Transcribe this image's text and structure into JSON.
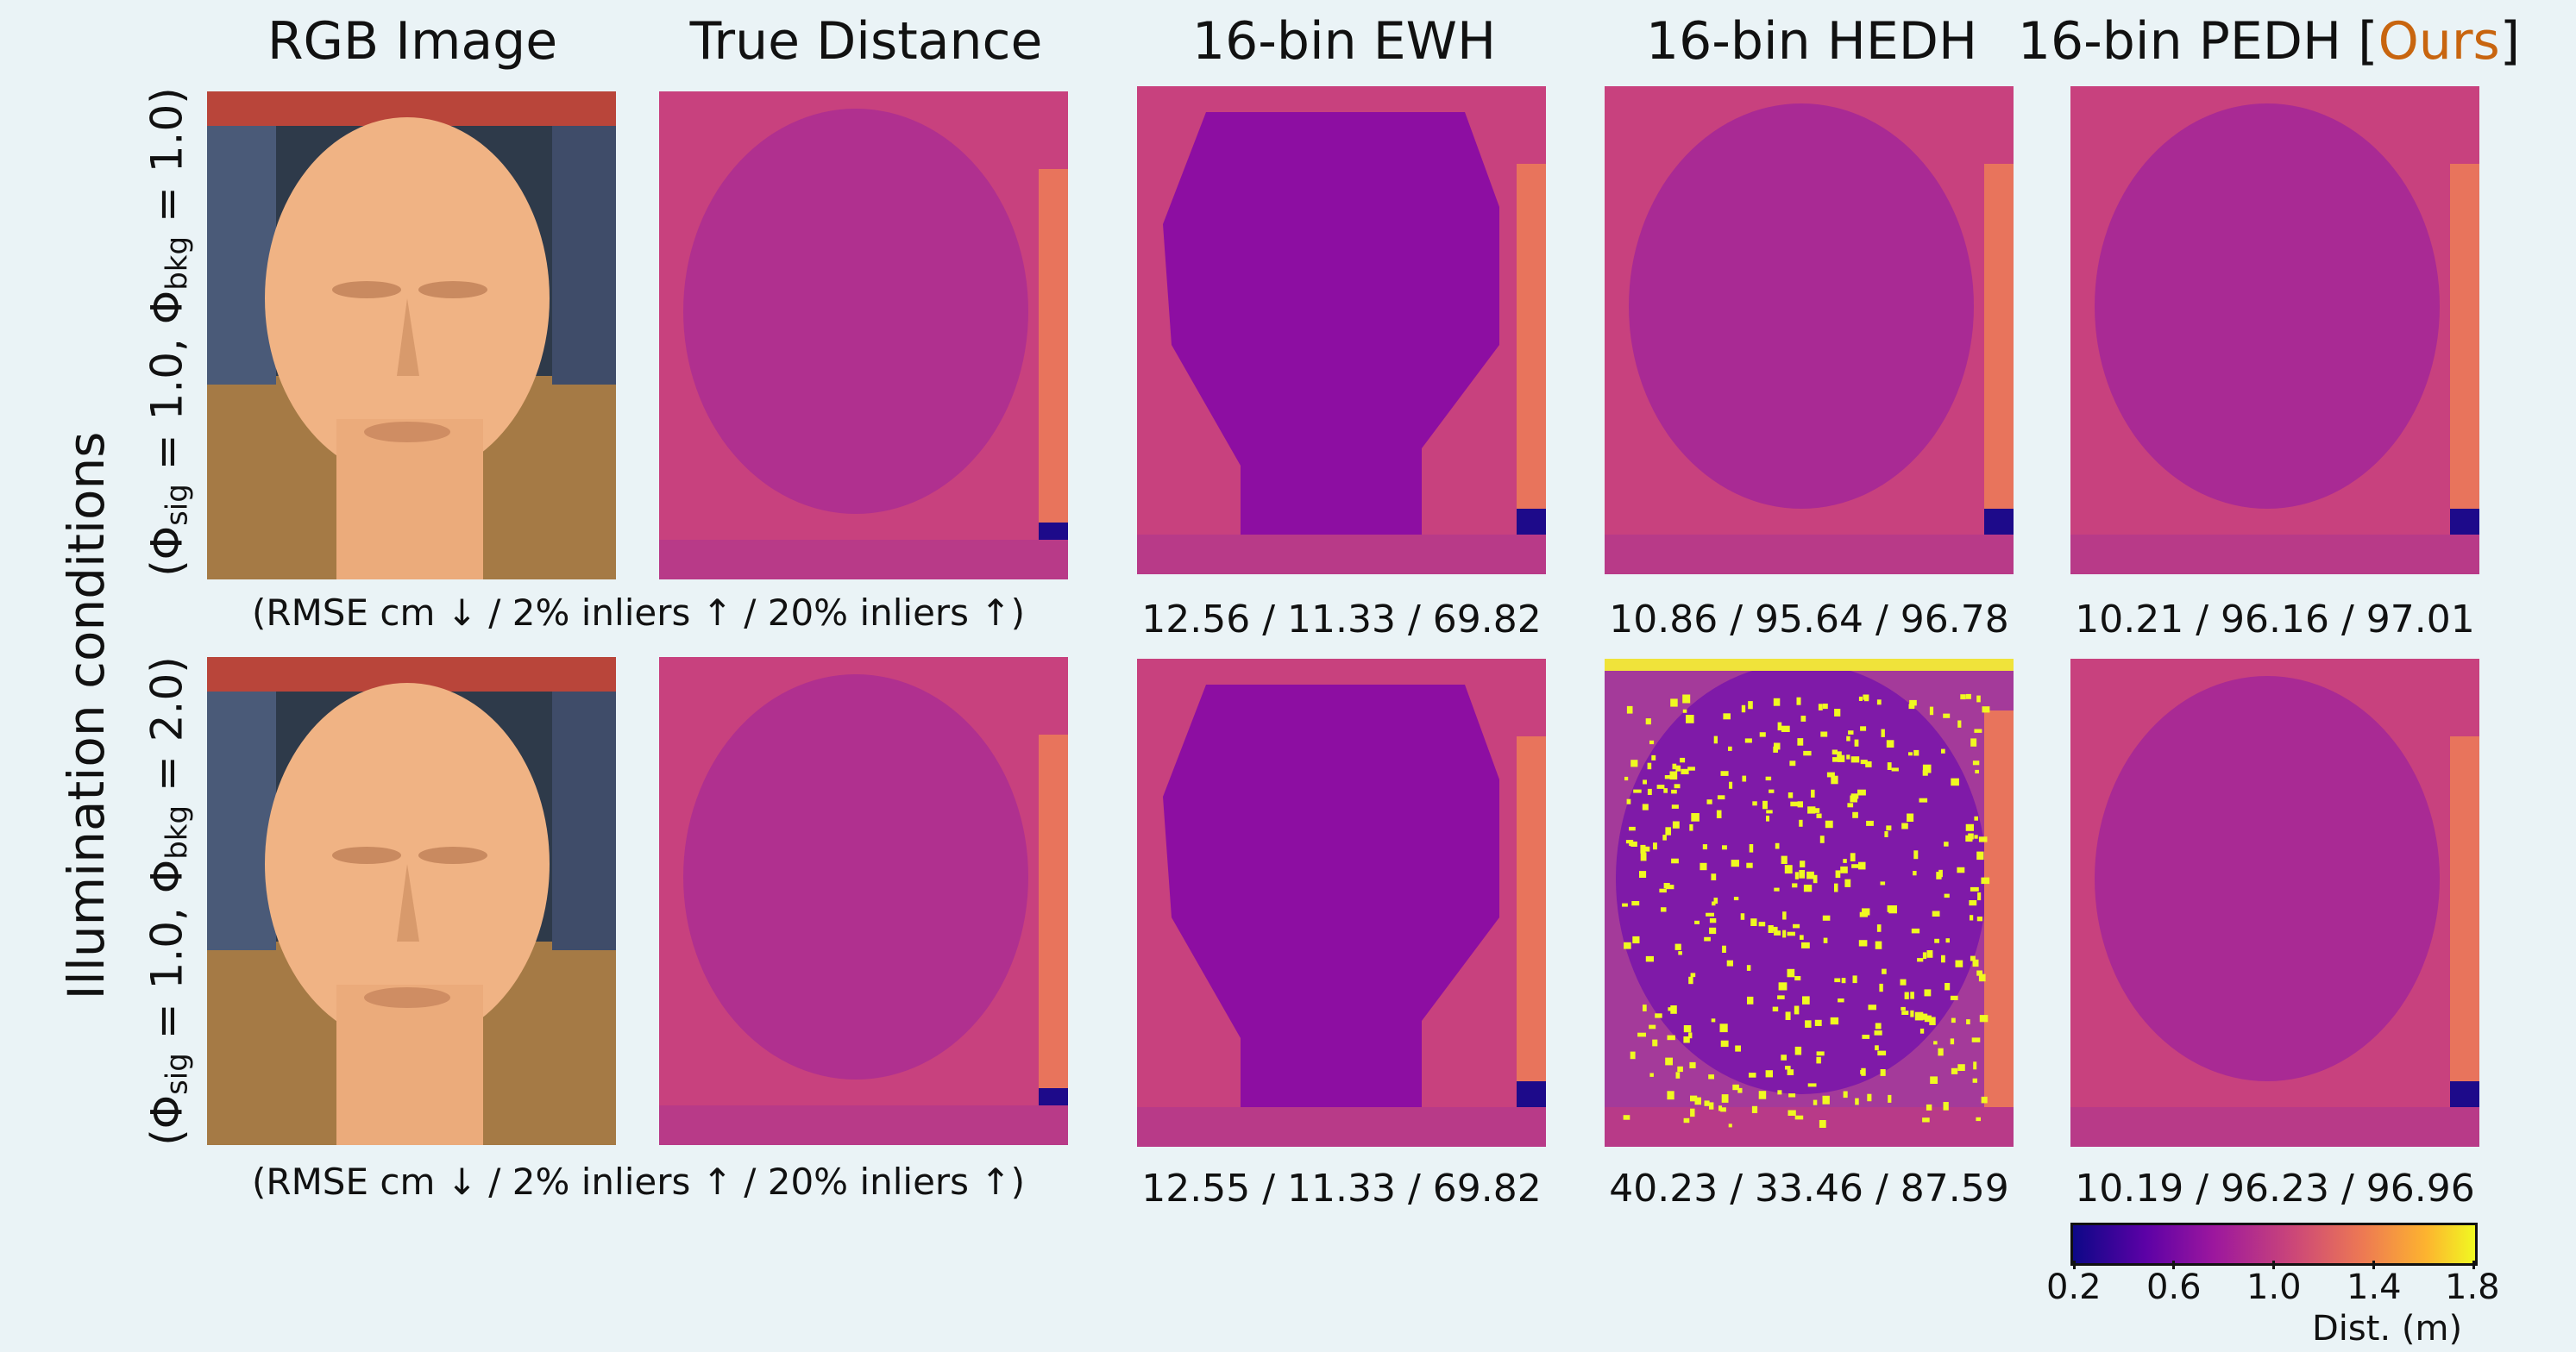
{
  "columns": [
    {
      "title": "RGB Image"
    },
    {
      "title": "True Distance"
    },
    {
      "title": "16-bin EWH"
    },
    {
      "title": "16-bin HEDH"
    },
    {
      "title": "16-bin PEDH [",
      "highlight": "Ours",
      "suffix": "]"
    }
  ],
  "side_title": "Illumination conditions",
  "rows": [
    {
      "label": {
        "phi": "Φ",
        "sig_sub": "sig",
        "sig_val": " = 1.0, ",
        "phi2": "Φ",
        "bkg_sub": "bkg",
        "bkg_val": " = 1.0"
      },
      "legend": "(RMSE cm ↓ / 2% inliers ↑ / 20% inliers ↑)",
      "metrics": [
        "12.56 / 11.33 / 69.82",
        "10.86 / 95.64 / 96.78",
        "10.21 / 96.16 / 97.01"
      ]
    },
    {
      "label": {
        "phi": "Φ",
        "sig_sub": "sig",
        "sig_val": " = 1.0, ",
        "phi2": "Φ",
        "bkg_sub": "bkg",
        "bkg_val": " = 2.0"
      },
      "legend": "(RMSE cm ↓ / 2% inliers ↑ / 20% inliers ↑)",
      "metrics": [
        "12.55 / 11.33 / 69.82",
        "40.23 / 33.46 / 87.59",
        "10.19 / 96.23 / 96.96"
      ]
    }
  ],
  "colorbar": {
    "ticks": [
      "0.2",
      "0.6",
      "1.0",
      "1.4",
      "1.8"
    ],
    "label": "Dist. (m)",
    "colors": [
      "#0d0887",
      "#5c01a6",
      "#9c179e",
      "#cc4778",
      "#ed7953",
      "#fdb42f",
      "#f0f921"
    ]
  },
  "colors": {
    "ours": "#c8650f",
    "background": "#eaf3f6",
    "face_true": "#b0308f",
    "face_ewh": "#8d0ea2",
    "bg_magenta": "#c8417e",
    "right_orange": "#e8745c",
    "dark_blue": "#1d0a8a"
  }
}
